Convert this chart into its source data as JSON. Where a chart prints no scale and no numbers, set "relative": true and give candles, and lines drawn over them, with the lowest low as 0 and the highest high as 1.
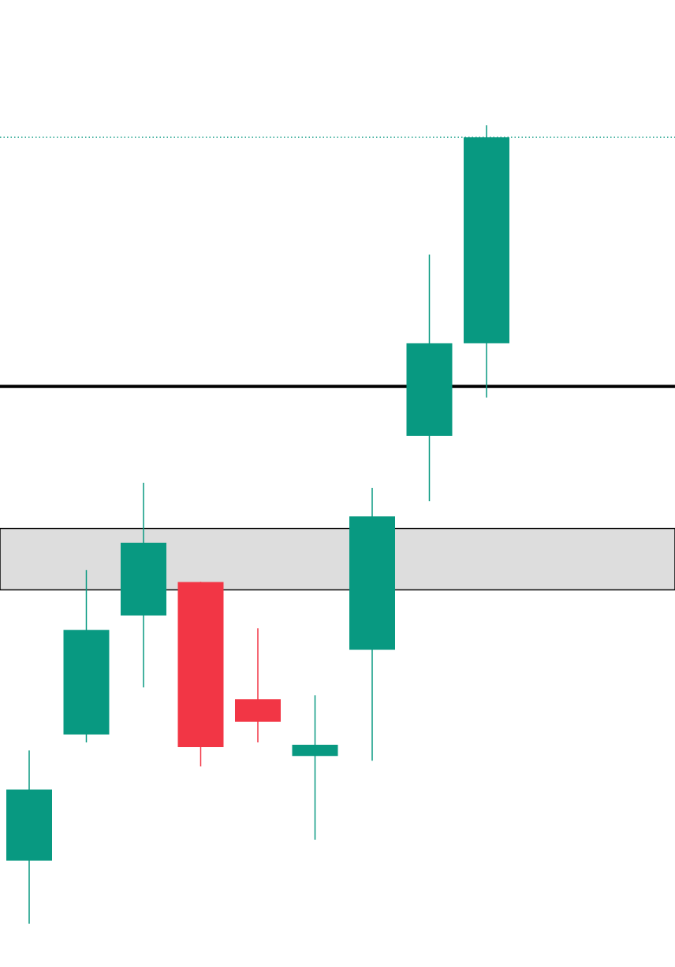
{
  "chart_data": {
    "type": "candlestick",
    "relative": true,
    "categories": [
      null,
      null,
      null,
      null,
      null,
      null,
      null,
      null,
      null
    ],
    "ohlc": [
      [
        0.079,
        0.217,
        0,
        0.168
      ],
      [
        0.237,
        0.443,
        0.227,
        0.368
      ],
      [
        0.386,
        0.552,
        0.296,
        0.477
      ],
      [
        0.428,
        0.428,
        0.197,
        0.221
      ],
      [
        0.281,
        0.37,
        0.227,
        0.253
      ],
      [
        0.21,
        0.286,
        0.105,
        0.224
      ],
      [
        0.343,
        0.546,
        0.204,
        0.51
      ],
      [
        0.611,
        0.838,
        0.529,
        0.727
      ],
      [
        0.727,
        1,
        0.659,
        0.985
      ]
    ],
    "colors": [
      "#089981",
      "#089981",
      "#089981",
      "#f23645",
      "#f23645",
      "#089981",
      "#089981",
      "#089981",
      "#089981"
    ],
    "ref_lines": [
      {
        "axis": "y",
        "value": 0.673,
        "color": "#000000",
        "line_style": "solid"
      },
      {
        "axis": "y",
        "value": 0.985,
        "color": "#089981",
        "line_style": "dotted"
      }
    ],
    "bands": [
      {
        "axis": "y",
        "from": 0.418,
        "to": 0.495,
        "color": "#dddddd"
      }
    ]
  }
}
